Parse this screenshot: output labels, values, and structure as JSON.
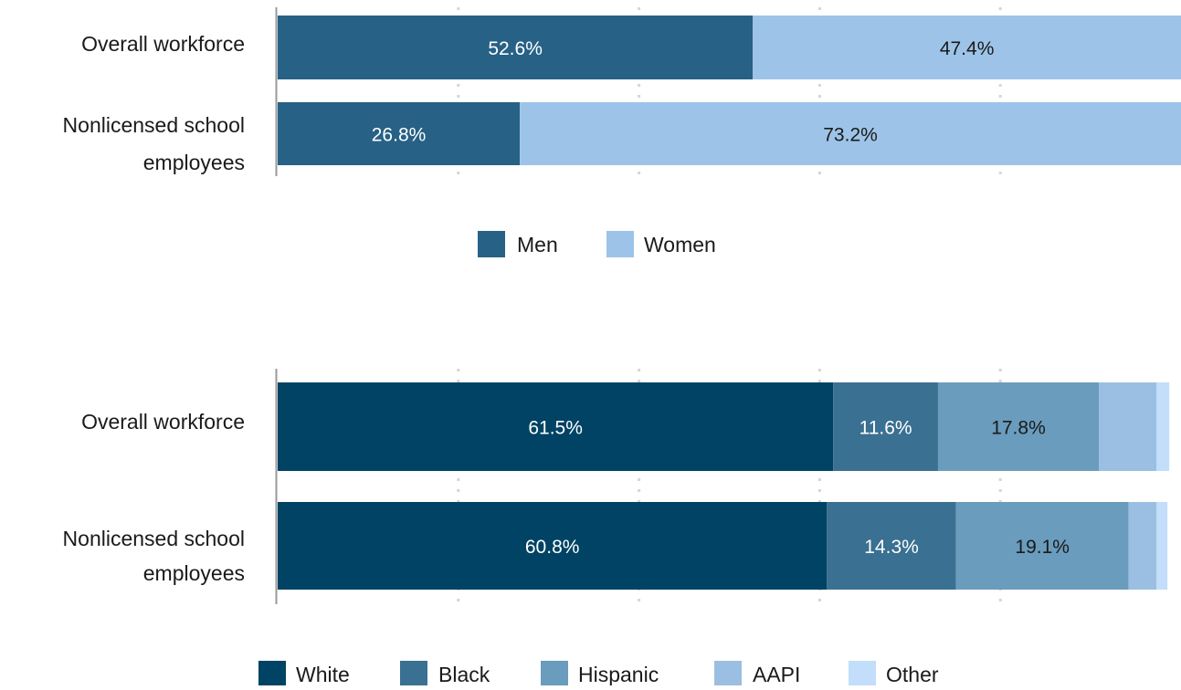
{
  "chart_data": [
    {
      "type": "bar",
      "orientation": "horizontal",
      "stacked": true,
      "normalized": true,
      "categories": [
        "Overall workforce",
        "Nonlicensed school employees"
      ],
      "series": [
        {
          "name": "Men",
          "values": [
            52.6,
            26.8
          ],
          "color": "#276185",
          "label_color": "#ffffff",
          "labels": [
            "52.6%",
            "26.8%"
          ]
        },
        {
          "name": "Women",
          "values": [
            47.4,
            73.2
          ],
          "color": "#9dc4e8",
          "label_color": "#1a1a1a",
          "labels": [
            "47.4%",
            "73.2%"
          ]
        }
      ],
      "xlim": [
        0,
        100
      ],
      "grid": true,
      "legend_position": "bottom-center"
    },
    {
      "type": "bar",
      "orientation": "horizontal",
      "stacked": true,
      "normalized": true,
      "categories": [
        "Overall workforce",
        "Nonlicensed school employees"
      ],
      "series": [
        {
          "name": "White",
          "values": [
            61.5,
            60.8
          ],
          "color": "#004364",
          "label_color": "#ffffff",
          "labels": [
            "61.5%",
            "60.8%"
          ]
        },
        {
          "name": "Black",
          "values": [
            11.6,
            14.3
          ],
          "color": "#3a7091",
          "label_color": "#ffffff",
          "labels": [
            "11.6%",
            "14.3%"
          ]
        },
        {
          "name": "Hispanic",
          "values": [
            17.8,
            19.1
          ],
          "color": "#6a9cbd",
          "label_color": "#1a1a1a",
          "labels": [
            "17.8%",
            "19.1%"
          ]
        },
        {
          "name": "AAPI",
          "values": [
            6.4,
            3.1
          ],
          "color": "#9bbfe2",
          "label_color": "#1a1a1a",
          "labels": [
            "",
            ""
          ]
        },
        {
          "name": "Other",
          "values": [
            1.4,
            1.2
          ],
          "color": "#c2defa",
          "label_color": "#1a1a1a",
          "labels": [
            "",
            ""
          ]
        }
      ],
      "xlim": [
        0,
        100
      ],
      "grid": true,
      "legend_position": "bottom-center"
    }
  ]
}
